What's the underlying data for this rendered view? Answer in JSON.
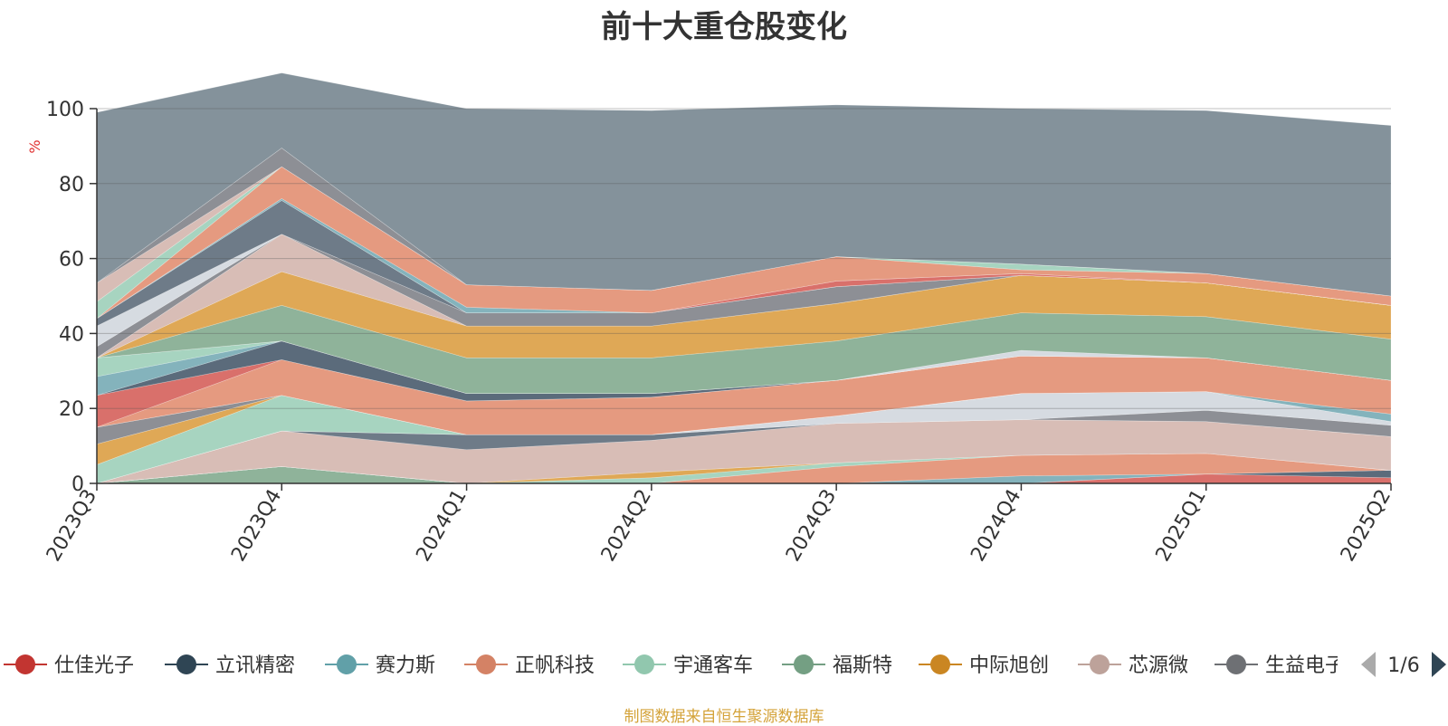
{
  "chart_data": {
    "type": "area",
    "stacked": true,
    "title": "前十大重仓股变化",
    "ylabel": "%",
    "ylim": [
      0,
      100
    ],
    "yticks": [
      0,
      20,
      40,
      60,
      80,
      100
    ],
    "grid": true,
    "categories": [
      "2023Q3",
      "2023Q4",
      "2024Q1",
      "2024Q2",
      "2024Q3",
      "2024Q4",
      "2025Q1",
      "2025Q2"
    ],
    "series": [
      {
        "name": "福斯特",
        "color": "#8fb39a",
        "values": [
          0,
          4.5,
          0,
          0,
          0,
          0,
          0,
          0
        ]
      },
      {
        "name": "仕佳光子",
        "color": "#d9706b",
        "values": [
          0,
          0,
          0,
          0,
          0,
          0,
          2.5,
          1.5
        ]
      },
      {
        "name": "立讯精密",
        "color": "#5b6b7b",
        "values": [
          0,
          0,
          0,
          0,
          0,
          0,
          0,
          2
        ]
      },
      {
        "name": "赛力斯",
        "color": "#84b3bc",
        "values": [
          0,
          0,
          0,
          0,
          0,
          2,
          0,
          0
        ]
      },
      {
        "name": "正帆科技",
        "color": "#e59a80",
        "values": [
          0,
          0,
          0,
          0,
          4.5,
          5.5,
          5.5,
          0
        ]
      },
      {
        "name": "宇通客车",
        "color": "#a7d4c0",
        "values": [
          0,
          0,
          0,
          1.5,
          1,
          0,
          0,
          0
        ]
      },
      {
        "name": "中际旭创",
        "color": "#dfa856",
        "values": [
          0,
          0,
          0,
          1.5,
          0,
          0,
          0,
          0
        ]
      },
      {
        "name": "芯源微",
        "color": "#d8bdb6",
        "values": [
          0,
          9.5,
          9,
          8.5,
          10.5,
          9.5,
          8.5,
          9
        ]
      },
      {
        "name": "立讯精密",
        "color": "#6e7b88",
        "values": [
          0,
          0,
          4,
          1.5,
          0,
          0,
          0,
          0
        ]
      },
      {
        "name": "生益电子",
        "color": "#8d8f95",
        "values": [
          0,
          0,
          0,
          0,
          0,
          0,
          3,
          3
        ]
      },
      {
        "name": "",
        "color": "#d6dbe1",
        "values": [
          0,
          0,
          0,
          0,
          2,
          7,
          5,
          1
        ]
      },
      {
        "name": "宇通客车",
        "color": "#a7d4c0",
        "values": [
          5,
          9.5,
          0,
          0,
          0,
          0,
          0,
          0
        ]
      },
      {
        "name": "中际旭创",
        "color": "#dfa856",
        "values": [
          5.5,
          0,
          0,
          0,
          0,
          0,
          0,
          0
        ]
      },
      {
        "name": "生益电子",
        "color": "#8d8f95",
        "values": [
          4.5,
          0,
          0,
          0,
          0,
          0,
          0,
          0
        ]
      },
      {
        "name": "赛力斯",
        "color": "#84b3bc",
        "values": [
          0,
          0,
          0,
          0,
          0,
          0,
          0,
          2
        ]
      },
      {
        "name": "正帆科技",
        "color": "#e59a80",
        "values": [
          0,
          9.5,
          9,
          10,
          9.5,
          10,
          9,
          9
        ]
      },
      {
        "name": "仕佳光子",
        "color": "#d9706b",
        "values": [
          8.5,
          0,
          0,
          0,
          0,
          0,
          0,
          0
        ]
      },
      {
        "name": "立讯精密",
        "color": "#5b6b7b",
        "values": [
          0,
          5,
          2,
          1,
          0,
          0,
          0,
          0
        ]
      },
      {
        "name": "赛力斯",
        "color": "#84b3bc",
        "values": [
          5,
          0,
          0,
          0,
          0,
          0,
          0,
          0
        ]
      },
      {
        "name": "宇通客车",
        "color": "#a7d4c0",
        "values": [
          5,
          0,
          0,
          0,
          0,
          0,
          0,
          0
        ]
      },
      {
        "name": "",
        "color": "#d6dbe1",
        "values": [
          0,
          0,
          0,
          0,
          0,
          1.5,
          0,
          0
        ]
      },
      {
        "name": "福斯特",
        "color": "#8fb39a",
        "values": [
          0,
          9.5,
          9.5,
          9.5,
          10.5,
          10,
          11,
          11
        ]
      },
      {
        "name": "中际旭创",
        "color": "#dfa856",
        "values": [
          0,
          9,
          8.5,
          8.5,
          10,
          10,
          9,
          9
        ]
      },
      {
        "name": "芯源微",
        "color": "#d8bdb6",
        "values": [
          0,
          10,
          0,
          0,
          0,
          0,
          0,
          0
        ]
      },
      {
        "name": "生益电子",
        "color": "#8d8f95",
        "values": [
          3,
          0,
          3.5,
          3.5,
          4.5,
          0,
          0,
          0
        ]
      },
      {
        "name": "",
        "color": "#d6dbe1",
        "values": [
          5.5,
          0,
          0,
          0,
          0,
          0,
          0,
          0
        ]
      },
      {
        "name": "立讯精密",
        "color": "#6e7b88",
        "values": [
          2,
          9,
          0,
          0,
          0,
          0,
          0,
          0
        ]
      },
      {
        "name": "仕佳光子",
        "color": "#d9706b",
        "values": [
          0,
          0,
          0,
          0,
          1.5,
          0.5,
          0,
          0
        ]
      },
      {
        "name": "赛力斯",
        "color": "#84b3bc",
        "values": [
          0,
          0.5,
          1.5,
          0,
          0,
          0,
          0,
          0
        ]
      },
      {
        "name": "正帆科技",
        "color": "#e59a80",
        "values": [
          0,
          8.5,
          6,
          6,
          6.5,
          1,
          2.5,
          2.5
        ]
      },
      {
        "name": "宇通客车",
        "color": "#a7d4c0",
        "values": [
          4.5,
          0,
          0,
          0,
          0,
          1.5,
          0,
          0
        ]
      },
      {
        "name": "芯源微",
        "color": "#d8bdb6",
        "values": [
          5,
          0,
          0,
          0,
          0,
          0,
          0,
          0
        ]
      },
      {
        "name": "生益电子",
        "color": "#8d8f95",
        "values": [
          0,
          5,
          0,
          0,
          0,
          0,
          0,
          0
        ]
      },
      {
        "name": "",
        "color": "#84929b",
        "values": [
          45.5,
          20,
          47,
          48,
          40.5,
          41.5,
          43.5,
          45.5
        ]
      }
    ]
  },
  "legend": {
    "items": [
      {
        "name": "仕佳光子",
        "color": "#c23531"
      },
      {
        "name": "立讯精密",
        "color": "#2f4554"
      },
      {
        "name": "赛力斯",
        "color": "#61a0a8"
      },
      {
        "name": "正帆科技",
        "color": "#d48265"
      },
      {
        "name": "宇通客车",
        "color": "#91c7ae"
      },
      {
        "name": "福斯特",
        "color": "#749f83"
      },
      {
        "name": "中际旭创",
        "color": "#ca8622"
      },
      {
        "name": "芯源微",
        "color": "#bda29a"
      },
      {
        "name": "生益电子",
        "color": "#6e7074"
      }
    ],
    "page": "1/6"
  },
  "footer": "制图数据来自恒生聚源数据库"
}
